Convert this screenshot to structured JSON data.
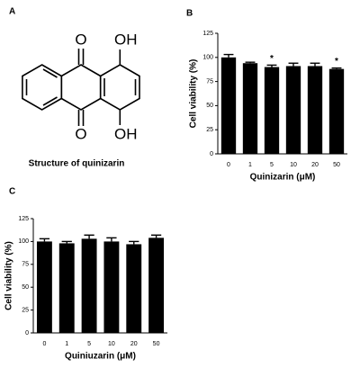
{
  "panel_a": {
    "label": "A",
    "caption": "Structure of quinizarin",
    "atoms": [
      "O",
      "O",
      "OH",
      "OH"
    ]
  },
  "chart_data": [
    {
      "type": "bar",
      "label": "B",
      "y_label": "Cell viability (%)",
      "x_label": "Quinizarin (μM)",
      "categories": [
        "0",
        "1",
        "5",
        "10",
        "20",
        "50"
      ],
      "values": [
        100,
        94,
        90,
        91,
        91,
        88
      ],
      "errors": [
        3,
        1,
        2,
        3,
        3,
        1
      ],
      "significance": [
        null,
        null,
        "*",
        null,
        null,
        "*"
      ],
      "color": "#000000",
      "ylim": [
        0,
        125
      ],
      "yticks": [
        0,
        25,
        50,
        75,
        100,
        125
      ]
    },
    {
      "type": "bar",
      "label": "C",
      "y_label": "Cell viability (%)",
      "x_label": "Quiniuzarin (μM)",
      "categories": [
        "0",
        "1",
        "5",
        "10",
        "20",
        "50"
      ],
      "values": [
        100,
        98,
        103,
        100,
        97,
        104
      ],
      "errors": [
        3,
        2,
        4,
        4,
        3,
        3
      ],
      "significance": [
        null,
        null,
        null,
        null,
        null,
        null
      ],
      "color": "#000000",
      "ylim": [
        0,
        125
      ],
      "yticks": [
        0,
        25,
        50,
        75,
        100,
        125
      ]
    }
  ]
}
